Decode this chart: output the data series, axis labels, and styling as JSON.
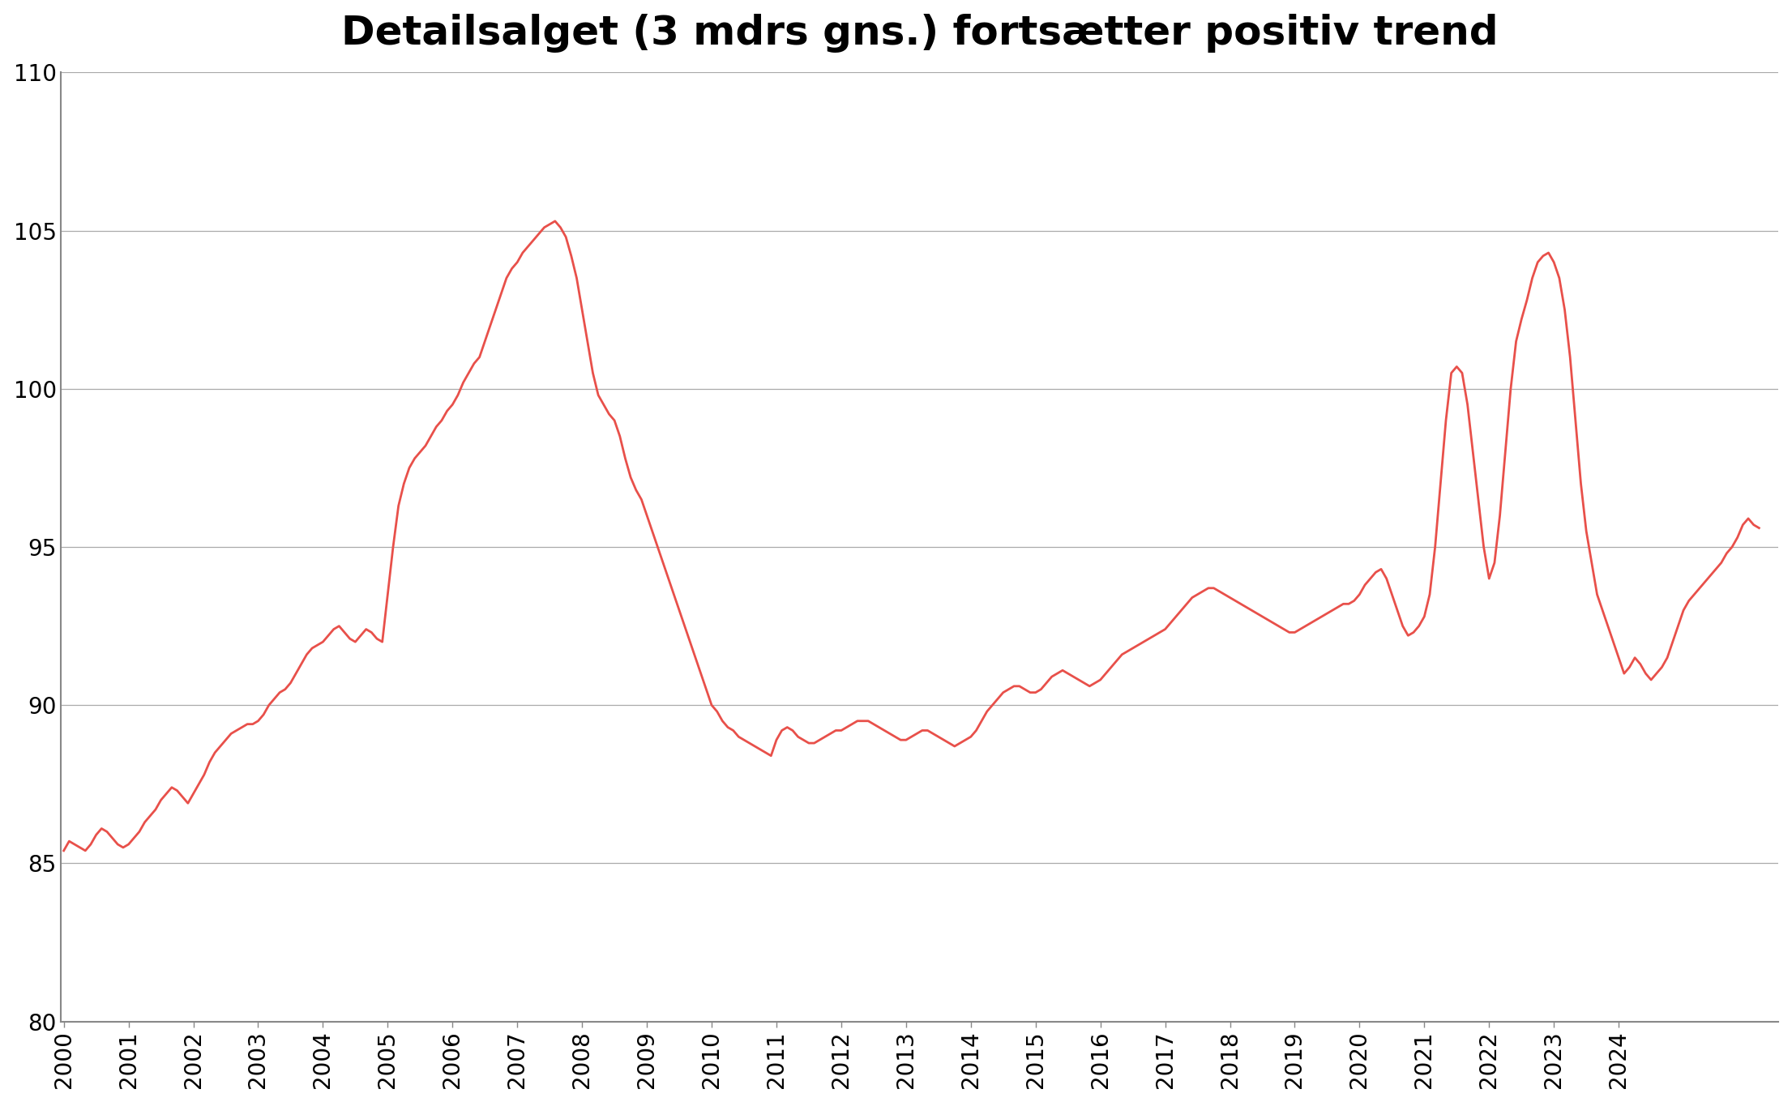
{
  "title": "Detailsalget (3 mdrs gns.) fortsætter positiv trend",
  "title_fontsize": 36,
  "title_fontweight": "bold",
  "line_color": "#e8504a",
  "line_width": 2.0,
  "background_color": "#ffffff",
  "ylim": [
    80,
    110
  ],
  "yticks": [
    80,
    85,
    90,
    95,
    100,
    105,
    110
  ],
  "grid_color": "#aaaaaa",
  "grid_linewidth": 0.9,
  "axis_color": "#888888",
  "tick_fontsize": 20,
  "x_start_year": 2000,
  "x_end_year": 2024,
  "monthly_data": [
    85.4,
    85.7,
    85.6,
    85.5,
    85.4,
    85.6,
    85.9,
    86.1,
    86.0,
    85.8,
    85.6,
    85.5,
    85.6,
    85.8,
    86.0,
    86.3,
    86.5,
    86.7,
    87.0,
    87.2,
    87.4,
    87.3,
    87.1,
    86.9,
    87.2,
    87.5,
    87.8,
    88.2,
    88.5,
    88.7,
    88.9,
    89.1,
    89.2,
    89.3,
    89.4,
    89.4,
    89.5,
    89.7,
    90.0,
    90.2,
    90.4,
    90.5,
    90.7,
    91.0,
    91.3,
    91.6,
    91.8,
    91.9,
    92.0,
    92.2,
    92.4,
    92.5,
    92.3,
    92.1,
    92.0,
    92.2,
    92.4,
    92.3,
    92.1,
    92.0,
    93.5,
    95.0,
    96.3,
    97.0,
    97.5,
    97.8,
    98.0,
    98.2,
    98.5,
    98.8,
    99.0,
    99.3,
    99.5,
    99.8,
    100.2,
    100.5,
    100.8,
    101.0,
    101.5,
    102.0,
    102.5,
    103.0,
    103.5,
    103.8,
    104.0,
    104.3,
    104.5,
    104.7,
    104.9,
    105.1,
    105.2,
    105.3,
    105.1,
    104.8,
    104.2,
    103.5,
    102.5,
    101.5,
    100.5,
    99.8,
    99.5,
    99.2,
    99.0,
    98.5,
    97.8,
    97.2,
    96.8,
    96.5,
    96.0,
    95.5,
    95.0,
    94.5,
    94.0,
    93.5,
    93.0,
    92.5,
    92.0,
    91.5,
    91.0,
    90.5,
    90.0,
    89.8,
    89.5,
    89.3,
    89.2,
    89.0,
    88.9,
    88.8,
    88.7,
    88.6,
    88.5,
    88.4,
    88.9,
    89.2,
    89.3,
    89.2,
    89.0,
    88.9,
    88.8,
    88.8,
    88.9,
    89.0,
    89.1,
    89.2,
    89.2,
    89.3,
    89.4,
    89.5,
    89.5,
    89.5,
    89.4,
    89.3,
    89.2,
    89.1,
    89.0,
    88.9,
    88.9,
    89.0,
    89.1,
    89.2,
    89.2,
    89.1,
    89.0,
    88.9,
    88.8,
    88.7,
    88.8,
    88.9,
    89.0,
    89.2,
    89.5,
    89.8,
    90.0,
    90.2,
    90.4,
    90.5,
    90.6,
    90.6,
    90.5,
    90.4,
    90.4,
    90.5,
    90.7,
    90.9,
    91.0,
    91.1,
    91.0,
    90.9,
    90.8,
    90.7,
    90.6,
    90.7,
    90.8,
    91.0,
    91.2,
    91.4,
    91.6,
    91.7,
    91.8,
    91.9,
    92.0,
    92.1,
    92.2,
    92.3,
    92.4,
    92.6,
    92.8,
    93.0,
    93.2,
    93.4,
    93.5,
    93.6,
    93.7,
    93.7,
    93.6,
    93.5,
    93.4,
    93.3,
    93.2,
    93.1,
    93.0,
    92.9,
    92.8,
    92.7,
    92.6,
    92.5,
    92.4,
    92.3,
    92.3,
    92.4,
    92.5,
    92.6,
    92.7,
    92.8,
    92.9,
    93.0,
    93.1,
    93.2,
    93.2,
    93.3,
    93.5,
    93.8,
    94.0,
    94.2,
    94.3,
    94.0,
    93.5,
    93.0,
    92.5,
    92.2,
    92.3,
    92.5,
    92.8,
    93.5,
    95.0,
    97.0,
    99.0,
    100.5,
    100.7,
    100.5,
    99.5,
    98.0,
    96.5,
    95.0,
    94.0,
    94.5,
    96.0,
    98.0,
    100.0,
    101.5,
    102.2,
    102.8,
    103.5,
    104.0,
    104.2,
    104.3,
    104.0,
    103.5,
    102.5,
    101.0,
    99.0,
    97.0,
    95.5,
    94.5,
    93.5,
    93.0,
    92.5,
    92.0,
    91.5,
    91.0,
    91.2,
    91.5,
    91.3,
    91.0,
    90.8,
    91.0,
    91.2,
    91.5,
    92.0,
    92.5,
    93.0,
    93.3,
    93.5,
    93.7,
    93.9,
    94.1,
    94.3,
    94.5,
    94.8,
    95.0,
    95.3,
    95.7,
    95.9,
    95.7,
    95.6
  ]
}
